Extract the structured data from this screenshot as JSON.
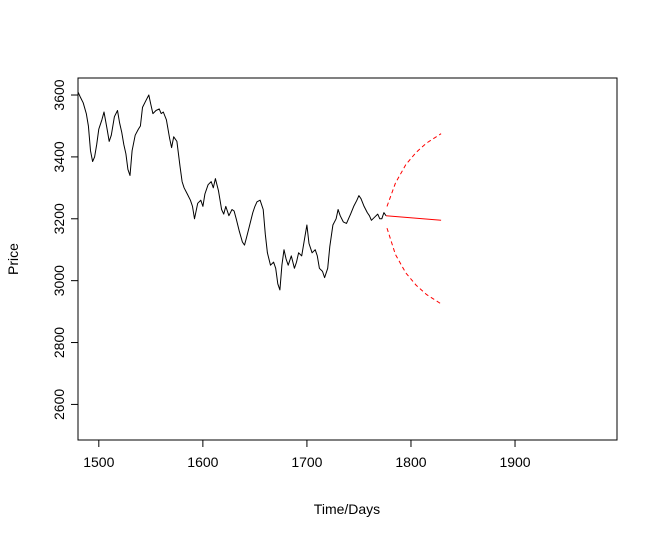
{
  "chart_data": {
    "type": "line",
    "title": "",
    "xlabel": "Time/Days",
    "ylabel": "Price",
    "xlim": [
      1480,
      1998
    ],
    "ylim": [
      2485,
      3655
    ],
    "x_ticks": [
      1500,
      1600,
      1700,
      1800,
      1900
    ],
    "x_tick_labels": [
      "1500",
      "1600",
      "1700",
      "1800",
      "1900"
    ],
    "y_ticks": [
      2600,
      2800,
      3000,
      3200,
      3400,
      3600
    ],
    "y_tick_labels": [
      "2600",
      "2800",
      "3000",
      "3200",
      "3400",
      "3600"
    ],
    "grid": false,
    "legend": "none",
    "colors": {
      "observed": "#000000",
      "forecast": "#ff0000",
      "interval": "#ff0000"
    },
    "series": [
      {
        "kind": "observed",
        "line_style": "solid",
        "points": [
          [
            1480,
            3610
          ],
          [
            1482,
            3595
          ],
          [
            1485,
            3575
          ],
          [
            1488,
            3540
          ],
          [
            1490,
            3500
          ],
          [
            1492,
            3420
          ],
          [
            1494,
            3385
          ],
          [
            1496,
            3400
          ],
          [
            1498,
            3440
          ],
          [
            1500,
            3490
          ],
          [
            1503,
            3520
          ],
          [
            1505,
            3545
          ],
          [
            1508,
            3490
          ],
          [
            1510,
            3450
          ],
          [
            1512,
            3470
          ],
          [
            1515,
            3530
          ],
          [
            1518,
            3550
          ],
          [
            1520,
            3510
          ],
          [
            1522,
            3480
          ],
          [
            1524,
            3440
          ],
          [
            1526,
            3410
          ],
          [
            1528,
            3360
          ],
          [
            1530,
            3340
          ],
          [
            1532,
            3420
          ],
          [
            1535,
            3470
          ],
          [
            1538,
            3490
          ],
          [
            1540,
            3500
          ],
          [
            1542,
            3560
          ],
          [
            1545,
            3580
          ],
          [
            1548,
            3600
          ],
          [
            1550,
            3570
          ],
          [
            1552,
            3540
          ],
          [
            1555,
            3550
          ],
          [
            1558,
            3555
          ],
          [
            1560,
            3540
          ],
          [
            1562,
            3545
          ],
          [
            1565,
            3520
          ],
          [
            1568,
            3460
          ],
          [
            1570,
            3430
          ],
          [
            1572,
            3465
          ],
          [
            1575,
            3450
          ],
          [
            1578,
            3370
          ],
          [
            1580,
            3320
          ],
          [
            1582,
            3300
          ],
          [
            1585,
            3280
          ],
          [
            1588,
            3260
          ],
          [
            1590,
            3240
          ],
          [
            1592,
            3200
          ],
          [
            1595,
            3250
          ],
          [
            1598,
            3260
          ],
          [
            1600,
            3240
          ],
          [
            1602,
            3280
          ],
          [
            1605,
            3310
          ],
          [
            1608,
            3320
          ],
          [
            1610,
            3300
          ],
          [
            1612,
            3330
          ],
          [
            1615,
            3290
          ],
          [
            1618,
            3230
          ],
          [
            1620,
            3215
          ],
          [
            1622,
            3240
          ],
          [
            1625,
            3210
          ],
          [
            1628,
            3230
          ],
          [
            1630,
            3225
          ],
          [
            1632,
            3200
          ],
          [
            1635,
            3160
          ],
          [
            1638,
            3125
          ],
          [
            1640,
            3115
          ],
          [
            1642,
            3140
          ],
          [
            1645,
            3180
          ],
          [
            1648,
            3220
          ],
          [
            1650,
            3240
          ],
          [
            1652,
            3255
          ],
          [
            1655,
            3260
          ],
          [
            1658,
            3230
          ],
          [
            1660,
            3150
          ],
          [
            1662,
            3090
          ],
          [
            1665,
            3050
          ],
          [
            1668,
            3060
          ],
          [
            1670,
            3040
          ],
          [
            1672,
            2990
          ],
          [
            1674,
            2970
          ],
          [
            1676,
            3050
          ],
          [
            1678,
            3100
          ],
          [
            1680,
            3070
          ],
          [
            1682,
            3050
          ],
          [
            1685,
            3080
          ],
          [
            1688,
            3040
          ],
          [
            1690,
            3060
          ],
          [
            1692,
            3090
          ],
          [
            1695,
            3080
          ],
          [
            1698,
            3140
          ],
          [
            1700,
            3180
          ],
          [
            1702,
            3120
          ],
          [
            1705,
            3090
          ],
          [
            1708,
            3100
          ],
          [
            1710,
            3080
          ],
          [
            1712,
            3040
          ],
          [
            1715,
            3030
          ],
          [
            1717,
            3010
          ],
          [
            1720,
            3040
          ],
          [
            1722,
            3110
          ],
          [
            1725,
            3180
          ],
          [
            1728,
            3200
          ],
          [
            1730,
            3230
          ],
          [
            1732,
            3210
          ],
          [
            1735,
            3190
          ],
          [
            1738,
            3185
          ],
          [
            1740,
            3200
          ],
          [
            1742,
            3215
          ],
          [
            1745,
            3240
          ],
          [
            1748,
            3260
          ],
          [
            1750,
            3275
          ],
          [
            1752,
            3265
          ],
          [
            1755,
            3240
          ],
          [
            1758,
            3220
          ],
          [
            1760,
            3210
          ],
          [
            1762,
            3195
          ],
          [
            1765,
            3205
          ],
          [
            1768,
            3215
          ],
          [
            1770,
            3200
          ],
          [
            1772,
            3200
          ],
          [
            1774,
            3220
          ],
          [
            1776,
            3210
          ]
        ]
      },
      {
        "kind": "forecast",
        "line_style": "solid",
        "points": [
          [
            1776,
            3210
          ],
          [
            1829,
            3195
          ]
        ]
      },
      {
        "kind": "upper-interval",
        "line_style": "dashed",
        "points": [
          [
            1777,
            3240
          ],
          [
            1785,
            3315
          ],
          [
            1795,
            3375
          ],
          [
            1805,
            3415
          ],
          [
            1815,
            3445
          ],
          [
            1829,
            3475
          ]
        ]
      },
      {
        "kind": "lower-interval",
        "line_style": "dashed",
        "points": [
          [
            1777,
            3170
          ],
          [
            1785,
            3085
          ],
          [
            1795,
            3025
          ],
          [
            1805,
            2985
          ],
          [
            1815,
            2955
          ],
          [
            1829,
            2925
          ]
        ]
      }
    ]
  }
}
